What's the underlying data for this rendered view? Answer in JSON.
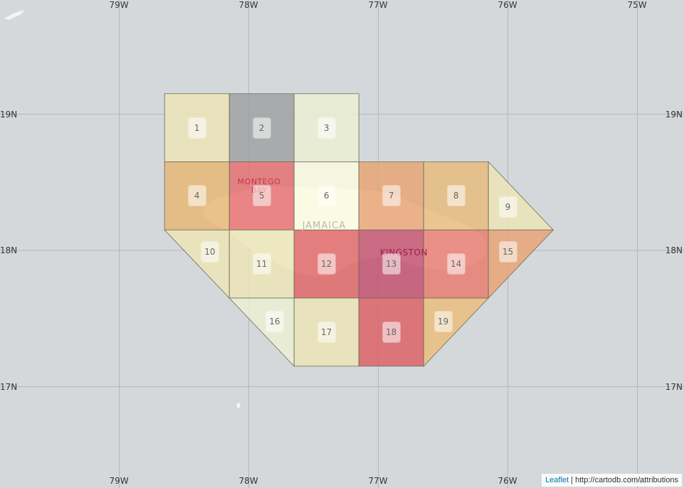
{
  "map": {
    "lon_labels": [
      "79W",
      "78W",
      "77W",
      "76W",
      "75W"
    ],
    "lat_labels": [
      "19N",
      "18N",
      "17N"
    ],
    "places": [
      {
        "label": "MONTEGO BAY",
        "lon": -77.92,
        "lat": 18.47,
        "color": "#c0394a"
      },
      {
        "label": "JAMAICA",
        "lon": -77.4,
        "lat": 18.18,
        "color": "#b8b8b0"
      },
      {
        "label": "KINGSTON",
        "lon": -76.8,
        "lat": 17.98,
        "color": "#9b1e50"
      }
    ],
    "cells": [
      {
        "id": "1",
        "color": "#ede5b5"
      },
      {
        "id": "2",
        "color": "#a0a0a0"
      },
      {
        "id": "3",
        "color": "#eef0d2"
      },
      {
        "id": "4",
        "color": "#e8b673"
      },
      {
        "id": "5",
        "color": "#e66c6c"
      },
      {
        "id": "6",
        "color": "#fcfcdf"
      },
      {
        "id": "7",
        "color": "#e9a373"
      },
      {
        "id": "8",
        "color": "#e8bb7b"
      },
      {
        "id": "9",
        "color": "#ede5b5"
      },
      {
        "id": "10",
        "color": "#ede5b5"
      },
      {
        "id": "11",
        "color": "#ede5b5"
      },
      {
        "id": "12",
        "color": "#e06464"
      },
      {
        "id": "13",
        "color": "#c34d6b"
      },
      {
        "id": "14",
        "color": "#e87a6e"
      },
      {
        "id": "15",
        "color": "#e9a373"
      },
      {
        "id": "16",
        "color": "#eef0d2"
      },
      {
        "id": "17",
        "color": "#ede5b5"
      },
      {
        "id": "18",
        "color": "#dd5f64"
      },
      {
        "id": "19",
        "color": "#ebbd7a"
      }
    ]
  },
  "attribution": {
    "leaflet": "Leaflet",
    "separator": " | ",
    "source": "http://cartodb.com/attributions"
  }
}
